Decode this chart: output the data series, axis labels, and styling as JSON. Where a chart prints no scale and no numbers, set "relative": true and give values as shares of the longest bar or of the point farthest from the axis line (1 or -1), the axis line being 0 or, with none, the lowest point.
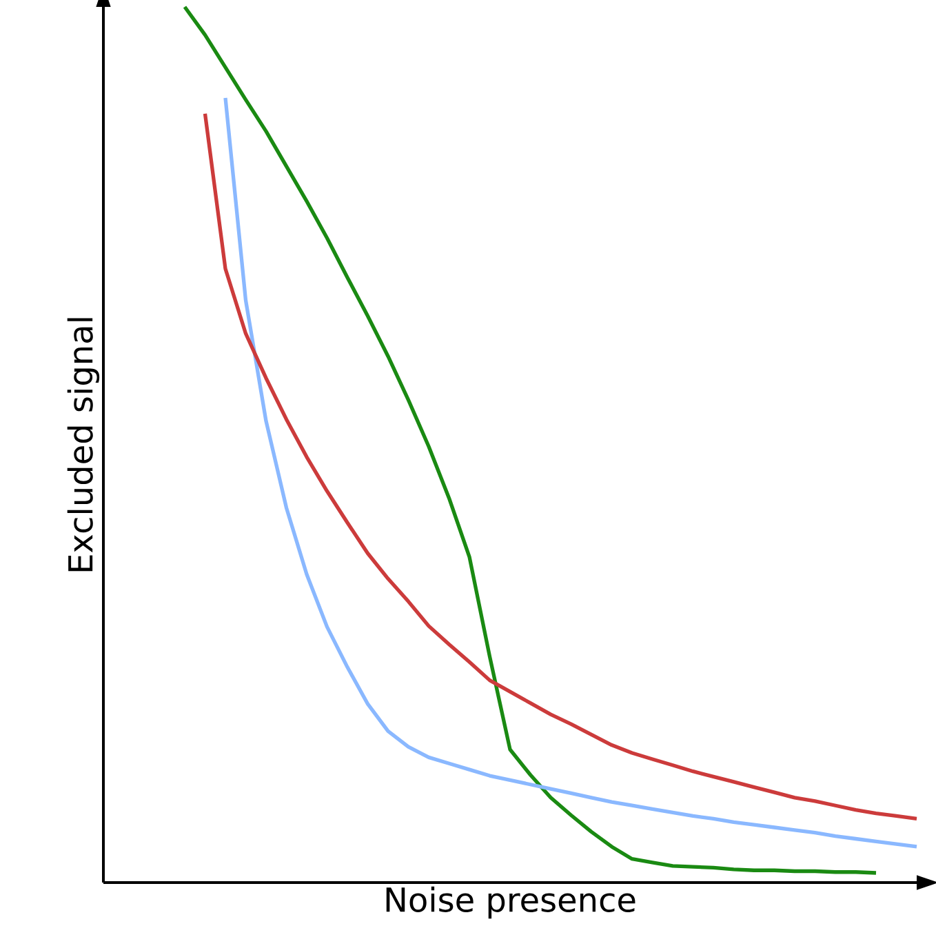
{
  "chart_data": {
    "type": "line",
    "xlabel": "Noise presence",
    "ylabel": "Excluded signal",
    "relative": true,
    "line_style": "solid",
    "marker": "none",
    "tick_labels": false,
    "categories": [
      null,
      null,
      null,
      null,
      null,
      null,
      null,
      null,
      null,
      null,
      null,
      null,
      null,
      null,
      null,
      null,
      null,
      null,
      null,
      null,
      null,
      null,
      null,
      null,
      null,
      null,
      null,
      null,
      null,
      null,
      null,
      null,
      null,
      null,
      null,
      null,
      null,
      null,
      null,
      null,
      null
    ],
    "series": [
      {
        "color": "#1a8a12",
        "values": [
          null,
          null,
          null,
          null,
          1.0,
          0.968,
          0.931,
          0.894,
          0.858,
          0.818,
          0.778,
          0.736,
          0.691,
          0.647,
          0.601,
          0.551,
          0.498,
          0.439,
          0.372,
          0.258,
          0.152,
          0.123,
          0.097,
          0.077,
          0.058,
          0.041,
          0.027,
          0.023,
          0.019,
          0.018,
          0.017,
          0.015,
          0.014,
          0.014,
          0.013,
          0.013,
          0.012,
          0.012,
          0.011,
          null,
          null
        ]
      },
      {
        "color": "#8ab8ff",
        "values": [
          null,
          null,
          null,
          null,
          null,
          null,
          0.896,
          0.665,
          0.527,
          0.428,
          0.352,
          0.292,
          0.246,
          0.204,
          0.173,
          0.155,
          0.143,
          0.136,
          0.129,
          0.122,
          0.117,
          0.112,
          0.107,
          0.102,
          0.097,
          0.092,
          0.088,
          0.084,
          0.08,
          0.076,
          0.073,
          0.069,
          0.066,
          0.063,
          0.06,
          0.057,
          0.053,
          0.05,
          0.047,
          0.044,
          0.041
        ]
      },
      {
        "color": "#cc3b3b",
        "values": [
          null,
          null,
          null,
          null,
          null,
          0.878,
          0.701,
          0.627,
          0.576,
          0.529,
          0.486,
          0.447,
          0.411,
          0.376,
          0.347,
          0.321,
          0.293,
          0.272,
          0.252,
          0.231,
          0.218,
          0.205,
          0.192,
          0.181,
          0.169,
          0.157,
          0.148,
          0.141,
          0.134,
          0.127,
          0.121,
          0.115,
          0.109,
          0.103,
          0.097,
          0.093,
          0.088,
          0.083,
          0.079,
          0.076,
          0.073
        ]
      }
    ]
  }
}
